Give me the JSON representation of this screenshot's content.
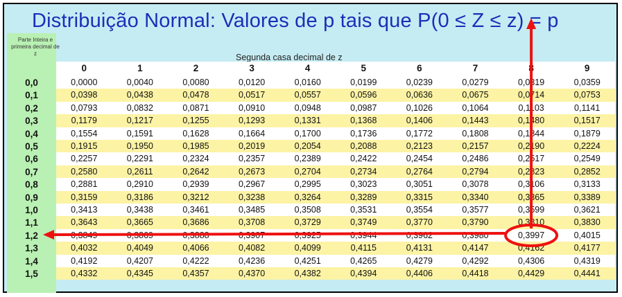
{
  "title": "Distribuição Normal: Valores de p tais que P(0 ≤ Z ≤ z) = p",
  "row_header_label": "Parte Inteira e primeira decimal de z",
  "col_group_label": "Segunda casa decimal de z",
  "columns": [
    "0",
    "1",
    "2",
    "3",
    "4",
    "5",
    "6",
    "7",
    "8",
    "9"
  ],
  "rows": [
    {
      "z": "0,0",
      "values": [
        "0,0000",
        "0,0040",
        "0,0080",
        "0,0120",
        "0,0160",
        "0,0199",
        "0,0239",
        "0,0279",
        "0,0319",
        "0,0359"
      ]
    },
    {
      "z": "0,1",
      "values": [
        "0,0398",
        "0,0438",
        "0,0478",
        "0,0517",
        "0,0557",
        "0,0596",
        "0,0636",
        "0,0675",
        "0,0714",
        "0,0753"
      ]
    },
    {
      "z": "0,2",
      "values": [
        "0,0793",
        "0,0832",
        "0,0871",
        "0,0910",
        "0,0948",
        "0,0987",
        "0,1026",
        "0,1064",
        "0,1103",
        "0,1141"
      ]
    },
    {
      "z": "0,3",
      "values": [
        "0,1179",
        "0,1217",
        "0,1255",
        "0,1293",
        "0,1331",
        "0,1368",
        "0,1406",
        "0,1443",
        "0,1480",
        "0,1517"
      ]
    },
    {
      "z": "0,4",
      "values": [
        "0,1554",
        "0,1591",
        "0,1628",
        "0,1664",
        "0,1700",
        "0,1736",
        "0,1772",
        "0,1808",
        "0,1844",
        "0,1879"
      ]
    },
    {
      "z": "0,5",
      "values": [
        "0,1915",
        "0,1950",
        "0,1985",
        "0,2019",
        "0,2054",
        "0,2088",
        "0,2123",
        "0,2157",
        "0,2190",
        "0,2224"
      ]
    },
    {
      "z": "0,6",
      "values": [
        "0,2257",
        "0,2291",
        "0,2324",
        "0,2357",
        "0,2389",
        "0,2422",
        "0,2454",
        "0,2486",
        "0,2517",
        "0,2549"
      ]
    },
    {
      "z": "0,7",
      "values": [
        "0,2580",
        "0,2611",
        "0,2642",
        "0,2673",
        "0,2704",
        "0,2734",
        "0,2764",
        "0,2794",
        "0,2823",
        "0,2852"
      ]
    },
    {
      "z": "0,8",
      "values": [
        "0,2881",
        "0,2910",
        "0,2939",
        "0,2967",
        "0,2995",
        "0,3023",
        "0,3051",
        "0,3078",
        "0,3106",
        "0,3133"
      ]
    },
    {
      "z": "0,9",
      "values": [
        "0,3159",
        "0,3186",
        "0,3212",
        "0,3238",
        "0,3264",
        "0,3289",
        "0,3315",
        "0,3340",
        "0,3365",
        "0,3389"
      ]
    },
    {
      "z": "1,0",
      "values": [
        "0,3413",
        "0,3438",
        "0,3461",
        "0,3485",
        "0,3508",
        "0,3531",
        "0,3554",
        "0,3577",
        "0,3599",
        "0,3621"
      ]
    },
    {
      "z": "1,1",
      "values": [
        "0,3643",
        "0,3665",
        "0,3686",
        "0,3708",
        "0,3729",
        "0,3749",
        "0,3770",
        "0,3790",
        "0,3810",
        "0,3830"
      ]
    },
    {
      "z": "1,2",
      "values": [
        "0,3849",
        "0,3869",
        "0,3888",
        "0,3907",
        "0,3925",
        "0,3944",
        "0,3962",
        "0,3980",
        "0,3997",
        "0,4015"
      ]
    },
    {
      "z": "1,3",
      "values": [
        "0,4032",
        "0,4049",
        "0,4066",
        "0,4082",
        "0,4099",
        "0,4115",
        "0,4131",
        "0,4147",
        "0,4162",
        "0,4177"
      ]
    },
    {
      "z": "1,4",
      "values": [
        "0,4192",
        "0,4207",
        "0,4222",
        "0,4236",
        "0,4251",
        "0,4265",
        "0,4279",
        "0,4292",
        "0,4306",
        "0,4319"
      ]
    },
    {
      "z": "1,5",
      "values": [
        "0,4332",
        "0,4345",
        "0,4357",
        "0,4370",
        "0,4382",
        "0,4394",
        "0,4406",
        "0,4418",
        "0,4429",
        "0,4441"
      ]
    }
  ],
  "highlight": {
    "row_index": 12,
    "col_index": 8,
    "color": "#ee1111"
  },
  "colors": {
    "title": "#1a2fb8",
    "header_bg": "#c5ecf3",
    "row_label_bg": "#b9f0b3",
    "stripe_yellow": "#fcf3a5",
    "arrow_red": "#ee1111"
  }
}
